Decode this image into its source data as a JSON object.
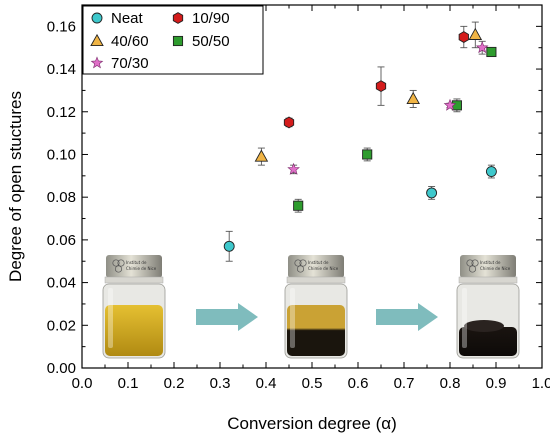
{
  "chart_data": {
    "type": "scatter",
    "xlabel": "Conversion degree (α)",
    "ylabel": "Degree of open stuctures",
    "xlim": [
      0.0,
      1.0
    ],
    "ylim": [
      0.0,
      0.17
    ],
    "xticks": [
      "0.0",
      "0.1",
      "0.2",
      "0.3",
      "0.4",
      "0.5",
      "0.6",
      "0.7",
      "0.8",
      "0.9",
      "1.0"
    ],
    "yticks": [
      "0.00",
      "0.02",
      "0.04",
      "0.06",
      "0.08",
      "0.10",
      "0.12",
      "0.14",
      "0.16"
    ],
    "grid": false,
    "legend_position": "top-left",
    "series": [
      {
        "name": "Neat",
        "marker": "circle",
        "color": "#3ec8cc",
        "points": [
          {
            "x": 0.32,
            "y": 0.057,
            "err": 0.007
          },
          {
            "x": 0.76,
            "y": 0.082,
            "err": 0.003
          },
          {
            "x": 0.89,
            "y": 0.092,
            "err": 0.003
          }
        ]
      },
      {
        "name": "10/90",
        "marker": "hexagon",
        "color": "#d41c1c",
        "points": [
          {
            "x": 0.45,
            "y": 0.115,
            "err": 0.002
          },
          {
            "x": 0.65,
            "y": 0.132,
            "err": 0.009
          },
          {
            "x": 0.83,
            "y": 0.155,
            "err": 0.005
          }
        ]
      },
      {
        "name": "40/60",
        "marker": "triangle",
        "color": "#f0b445",
        "points": [
          {
            "x": 0.39,
            "y": 0.099,
            "err": 0.004
          },
          {
            "x": 0.72,
            "y": 0.126,
            "err": 0.004
          },
          {
            "x": 0.855,
            "y": 0.156,
            "err": 0.006
          }
        ]
      },
      {
        "name": "50/50",
        "marker": "square",
        "color": "#2e9c2e",
        "points": [
          {
            "x": 0.47,
            "y": 0.076,
            "err": 0.003
          },
          {
            "x": 0.62,
            "y": 0.1,
            "err": 0.003
          },
          {
            "x": 0.815,
            "y": 0.123,
            "err": 0.003
          },
          {
            "x": 0.89,
            "y": 0.148,
            "err": 0.002
          }
        ]
      },
      {
        "name": "70/30",
        "marker": "star",
        "color": "#e070c8",
        "points": [
          {
            "x": 0.46,
            "y": 0.093,
            "err": 0.002
          },
          {
            "x": 0.8,
            "y": 0.123,
            "err": 0.001
          },
          {
            "x": 0.87,
            "y": 0.15,
            "err": 0.003
          }
        ]
      }
    ],
    "vial_label": [
      "Institut de",
      "Chimie de Nice"
    ]
  },
  "colors": {
    "arrow": "#7fbcbd",
    "axis": "#000000",
    "legend_border": "#000000"
  },
  "illustration": {
    "vials": [
      {
        "name": "vial-yellow",
        "liquid_top": "#e5c032",
        "liquid_bottom": "#b08a12",
        "dark_fraction": 0.0
      },
      {
        "name": "vial-two-phase",
        "liquid_top": "#caa234",
        "liquid_bottom": "#1a150d",
        "dark_fraction": 0.55
      },
      {
        "name": "vial-dark",
        "liquid_top": "#1a1410",
        "liquid_bottom": "#0d0a08",
        "dark_fraction": 1.0
      }
    ]
  }
}
